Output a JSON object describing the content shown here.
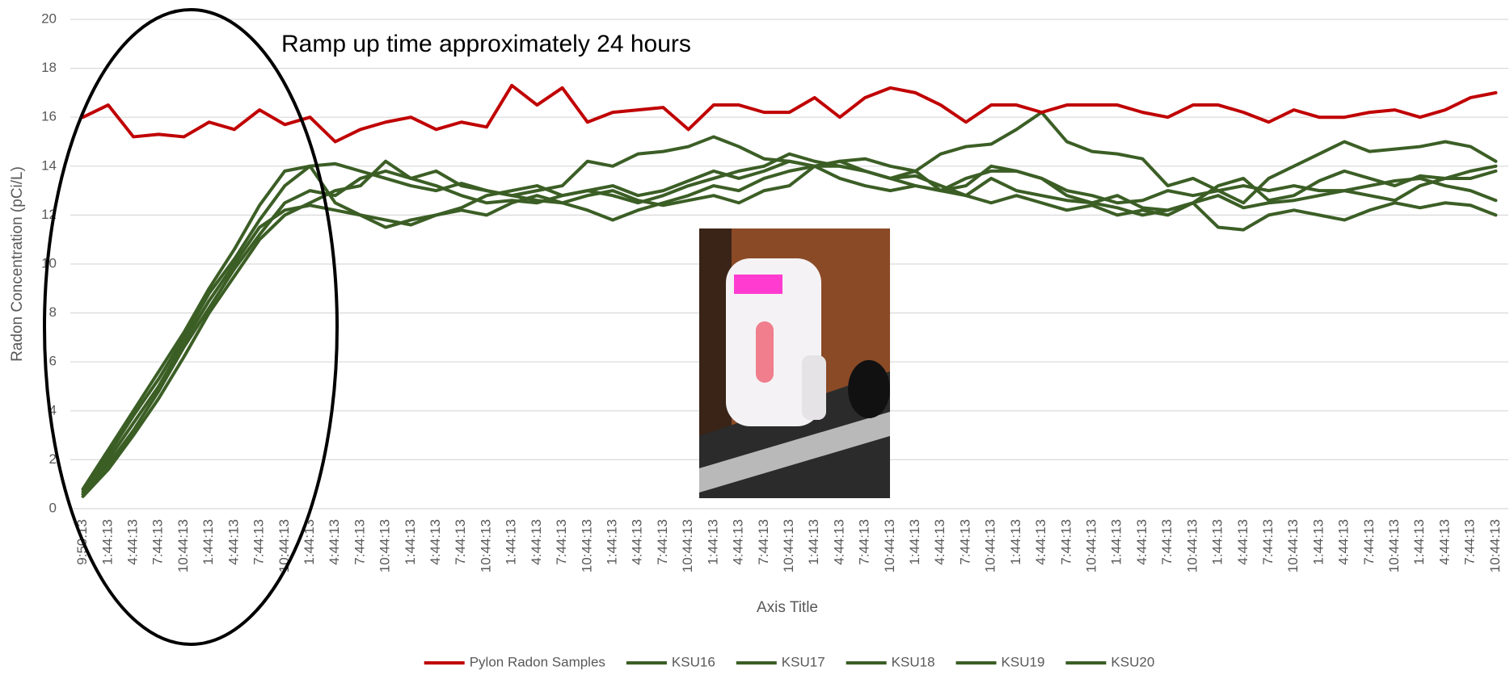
{
  "chart_data": {
    "type": "line",
    "annotation": "Ramp up time approximately 24 hours",
    "x_label": "Axis Title",
    "y_label": "Radon Concentration (pCi/L)",
    "ylim": [
      0,
      20
    ],
    "yticks": [
      0,
      2,
      4,
      6,
      8,
      10,
      12,
      14,
      16,
      18,
      20
    ],
    "grid": true,
    "legend": "bottom",
    "categories": [
      "9:50:13",
      "1:44:13",
      "4:44:13",
      "7:44:13",
      "10:44:13",
      "1:44:13",
      "4:44:13",
      "7:44:13",
      "10:44:13",
      "1:44:13",
      "4:44:13",
      "7:44:13",
      "10:44:13",
      "1:44:13",
      "4:44:13",
      "7:44:13",
      "10:44:13",
      "1:44:13",
      "4:44:13",
      "7:44:13",
      "10:44:13",
      "1:44:13",
      "4:44:13",
      "7:44:13",
      "10:44:13",
      "1:44:13",
      "4:44:13",
      "7:44:13",
      "10:44:13",
      "1:44:13",
      "4:44:13",
      "7:44:13",
      "10:44:13",
      "1:44:13",
      "4:44:13",
      "7:44:13",
      "10:44:13",
      "1:44:13",
      "4:44:13",
      "7:44:13",
      "10:44:13",
      "1:44:13",
      "4:44:13",
      "7:44:13",
      "10:44:13",
      "1:44:13",
      "4:44:13",
      "7:44:13",
      "10:44:13",
      "1:44:13",
      "4:44:13",
      "7:44:13",
      "10:44:13",
      "1:44:13",
      "4:44:13",
      "7:44:13",
      "10:44:13"
    ],
    "series": [
      {
        "name": "Pylon Radon Samples",
        "color": "#c00000",
        "values": [
          16.0,
          16.5,
          15.2,
          15.3,
          15.2,
          15.8,
          15.5,
          16.3,
          15.7,
          16.0,
          15.0,
          15.5,
          15.8,
          16.0,
          15.5,
          15.8,
          15.6,
          17.3,
          16.5,
          17.2,
          15.8,
          16.2,
          16.3,
          16.4,
          15.5,
          16.5,
          16.5,
          16.2,
          16.2,
          16.8,
          16.0,
          16.8,
          17.2,
          17.0,
          16.5,
          15.8,
          16.5,
          16.5,
          16.2,
          16.5,
          16.5,
          16.5,
          16.2,
          16.0,
          16.5,
          16.5,
          16.2,
          15.8,
          16.3,
          16.0,
          16.0,
          16.2,
          16.3,
          16.0,
          16.3,
          16.8,
          17.0
        ]
      },
      {
        "name": "KSU16",
        "color": "#3b5e25",
        "values": [
          0.6,
          2.2,
          3.8,
          5.3,
          7.0,
          8.8,
          10.2,
          11.8,
          13.2,
          14.0,
          14.1,
          13.8,
          13.5,
          13.2,
          13.0,
          13.3,
          13.0,
          12.8,
          13.0,
          13.2,
          14.2,
          14.0,
          14.5,
          14.6,
          14.8,
          15.2,
          14.8,
          14.3,
          14.2,
          14.0,
          14.2,
          14.3,
          14.0,
          13.8,
          14.5,
          14.8,
          14.9,
          15.5,
          16.2,
          15.0,
          14.6,
          14.5,
          14.3,
          13.2,
          13.5,
          13.0,
          12.5,
          13.5,
          14.0,
          14.5,
          15.0,
          14.6,
          14.7,
          14.8,
          15.0,
          14.8,
          14.2
        ]
      },
      {
        "name": "KSU17",
        "color": "#3b5e25",
        "values": [
          0.7,
          2.0,
          3.5,
          5.0,
          6.8,
          8.5,
          10.0,
          11.5,
          12.2,
          12.4,
          12.2,
          12.0,
          11.5,
          11.8,
          12.0,
          12.2,
          12.0,
          12.5,
          12.8,
          12.5,
          12.2,
          11.8,
          12.2,
          12.5,
          12.8,
          13.2,
          13.0,
          13.5,
          13.8,
          14.0,
          13.5,
          13.2,
          13.0,
          13.2,
          13.0,
          12.8,
          12.5,
          12.8,
          12.5,
          12.2,
          12.4,
          12.0,
          12.2,
          12.0,
          12.5,
          11.5,
          11.4,
          12.0,
          12.2,
          12.0,
          11.8,
          12.2,
          12.5,
          12.3,
          12.5,
          12.4,
          12.0
        ]
      },
      {
        "name": "KSU18",
        "color": "#3b5e25",
        "values": [
          0.8,
          2.4,
          4.0,
          5.6,
          7.2,
          9.0,
          10.6,
          12.4,
          13.8,
          14.0,
          12.5,
          12.0,
          11.8,
          11.6,
          12.0,
          12.3,
          12.8,
          13.0,
          13.2,
          12.8,
          13.0,
          13.2,
          12.8,
          13.0,
          13.4,
          13.8,
          13.5,
          13.8,
          14.2,
          14.0,
          14.0,
          13.8,
          13.5,
          13.8,
          13.0,
          13.2,
          14.0,
          13.8,
          13.5,
          12.8,
          12.5,
          12.8,
          12.3,
          12.2,
          12.5,
          13.2,
          13.5,
          12.6,
          12.8,
          13.4,
          13.8,
          13.5,
          13.2,
          13.6,
          13.5,
          13.8,
          14.0
        ]
      },
      {
        "name": "KSU19",
        "color": "#3b5e25",
        "values": [
          0.6,
          1.8,
          3.2,
          4.8,
          6.6,
          8.2,
          9.8,
          11.2,
          12.5,
          13.0,
          12.8,
          13.5,
          13.8,
          13.5,
          13.2,
          12.8,
          12.5,
          12.6,
          12.5,
          12.8,
          13.0,
          12.8,
          12.5,
          12.8,
          13.2,
          13.5,
          13.8,
          14.0,
          14.5,
          14.2,
          14.0,
          13.8,
          13.5,
          13.2,
          13.0,
          13.5,
          13.8,
          13.8,
          13.5,
          13.0,
          12.8,
          12.5,
          12.6,
          13.0,
          12.8,
          13.0,
          13.2,
          13.0,
          13.2,
          13.0,
          13.0,
          13.2,
          13.4,
          13.5,
          13.2,
          13.0,
          12.6
        ]
      },
      {
        "name": "KSU20",
        "color": "#3b5e25",
        "values": [
          0.5,
          1.6,
          3.0,
          4.5,
          6.2,
          8.0,
          9.5,
          11.0,
          12.0,
          12.5,
          13.0,
          13.2,
          14.2,
          13.5,
          13.8,
          13.2,
          13.0,
          12.8,
          12.6,
          12.5,
          12.8,
          13.0,
          12.6,
          12.4,
          12.6,
          12.8,
          12.5,
          13.0,
          13.2,
          14.0,
          14.2,
          13.8,
          13.5,
          13.6,
          13.2,
          12.8,
          13.5,
          13.0,
          12.8,
          12.6,
          12.5,
          12.3,
          12.0,
          12.2,
          12.5,
          12.8,
          12.3,
          12.5,
          12.6,
          12.8,
          13.0,
          12.8,
          12.6,
          13.2,
          13.5,
          13.5,
          13.8
        ]
      }
    ]
  }
}
